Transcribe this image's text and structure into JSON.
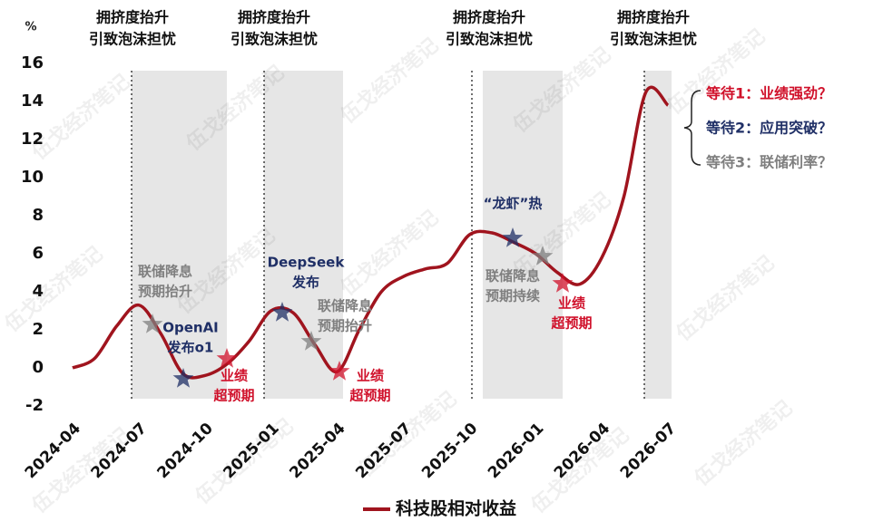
{
  "chart_data": {
    "type": "line",
    "y_label": "%",
    "x": [
      "2024-04",
      "2024-05",
      "2024-06",
      "2024-07",
      "2024-08",
      "2024-09",
      "2024-10",
      "2024-11",
      "2024-12",
      "2025-01",
      "2025-02",
      "2025-03",
      "2025-04",
      "2025-05",
      "2025-06",
      "2025-07",
      "2025-08",
      "2025-09",
      "2025-10",
      "2025-11",
      "2025-12",
      "2026-01",
      "2026-02",
      "2026-03",
      "2026-04",
      "2026-05",
      "2026-06",
      "2026-07"
    ],
    "xticks": [
      "2024-04",
      "2024-07",
      "2024-10",
      "2025-01",
      "2025-04",
      "2025-07",
      "2025-10",
      "2026-01",
      "2026-04",
      "2026-07"
    ],
    "series": [
      {
        "name": "科技股相对收益",
        "color": "#a0141e",
        "values": [
          0,
          0.5,
          2.2,
          3.3,
          1.8,
          -0.3,
          -0.4,
          0.2,
          1.4,
          3.0,
          2.9,
          1.2,
          -0.2,
          2.0,
          4.0,
          4.8,
          5.2,
          5.5,
          7.0,
          7.1,
          6.6,
          6.0,
          5.0,
          4.4,
          5.8,
          9.0,
          14.5,
          13.8
        ]
      }
    ],
    "ylim": [
      -2,
      16
    ],
    "yticks": [
      -2,
      0,
      2,
      4,
      6,
      8,
      10,
      12,
      14,
      16
    ],
    "highlight_periods": [
      {
        "start": "2024-07",
        "end": "2024-11"
      },
      {
        "start": "2025-01",
        "end": "2025-04"
      },
      {
        "start": "2025-10",
        "end": "2026-02"
      },
      {
        "start": "2026-07",
        "end": "2026-07"
      }
    ],
    "top_annotations": [
      [
        "拥挤度抬升",
        "引致泡沫担忧"
      ],
      [
        "拥挤度抬升",
        "引致泡沫担忧"
      ],
      [
        "拥挤度抬升",
        "引致泡沫担忧"
      ],
      [
        "拥挤度抬升",
        "引致泡沫担忧"
      ]
    ],
    "events": [
      {
        "text": [
          "联储降息",
          "预期抬升"
        ],
        "color": "#7f7f7f"
      },
      {
        "text": [
          "OpenAI",
          "发布o1"
        ],
        "color": "#1f2f66"
      },
      {
        "text": [
          "业绩",
          "超预期"
        ],
        "color": "#d0102a"
      },
      {
        "text": [
          "DeepSeek",
          "发布"
        ],
        "color": "#1f2f66"
      },
      {
        "text": [
          "联储降息",
          "预期抬升"
        ],
        "color": "#7f7f7f"
      },
      {
        "text": [
          "业绩",
          "超预期"
        ],
        "color": "#d0102a"
      },
      {
        "text": [
          "“龙虾”热"
        ],
        "color": "#1f2f66"
      },
      {
        "text": [
          "联储降息",
          "预期持续"
        ],
        "color": "#7f7f7f"
      },
      {
        "text": [
          "业绩",
          "超预期"
        ],
        "color": "#d0102a"
      }
    ],
    "waiting": [
      {
        "text": "等待1：业绩强劲？",
        "color": "#d0102a"
      },
      {
        "text": "等待2：应用突破？",
        "color": "#1f2f66"
      },
      {
        "text": "等待3：联储利率？",
        "color": "#7f7f7f"
      }
    ],
    "watermark": "伍戈经济笔记"
  }
}
